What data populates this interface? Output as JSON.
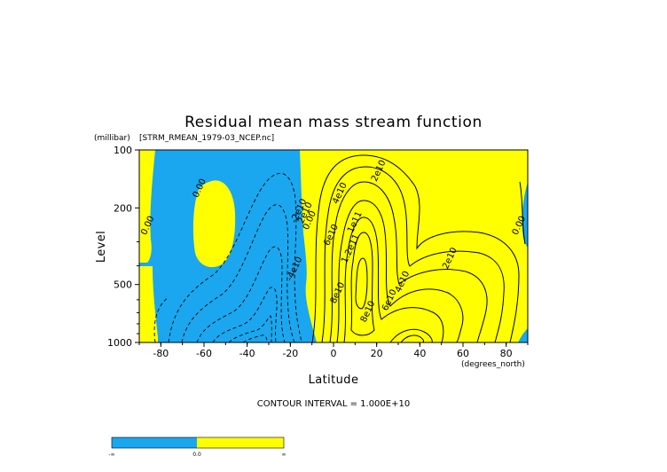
{
  "chart_data": {
    "type": "contour",
    "title": "Residual mean mass stream function",
    "source_file": "[STRM_RMEAN_1979-03_NCEP.nc]",
    "xlabel": "Latitude",
    "x_units": "(degrees_north)",
    "ylabel": "Level",
    "y_units": "(millibar)",
    "xlim": [
      -90,
      90
    ],
    "ylim": [
      1000,
      100
    ],
    "y_scale": "log",
    "x_ticks": [
      "-80",
      "-60",
      "-40",
      "-20",
      "0",
      "20",
      "40",
      "60",
      "80"
    ],
    "y_ticks": [
      "100",
      "200",
      "500",
      "1000"
    ],
    "x_tick_values": [
      -80,
      -60,
      -40,
      -20,
      0,
      20,
      40,
      60,
      80
    ],
    "y_tick_values": [
      100,
      200,
      500,
      1000
    ],
    "contour_interval_text": "CONTOUR INTERVAL = 1.000E+10",
    "contour_interval": 10000000000,
    "fill_colors": {
      "negative": "#1aa7ef",
      "positive": "#ffff00"
    },
    "colorbar_labels": [
      "-∞",
      "0.0",
      "∞"
    ],
    "contour_labels": [
      {
        "text": "0.00",
        "lat": -61,
        "p": 160
      },
      {
        "text": "0.00",
        "lat": -85,
        "p": 250
      },
      {
        "text": "0.00",
        "lat": 87,
        "p": 250
      },
      {
        "text": "-2e10",
        "lat": -15,
        "p": 210
      },
      {
        "text": "-4e10",
        "lat": -17,
        "p": 420
      },
      {
        "text": "2e10",
        "lat": -12,
        "p": 215
      },
      {
        "text": "0.00",
        "lat": -10,
        "p": 235
      },
      {
        "text": "2e10",
        "lat": 22,
        "p": 130
      },
      {
        "text": "4e10",
        "lat": 4,
        "p": 170
      },
      {
        "text": "1e11",
        "lat": 11,
        "p": 240
      },
      {
        "text": "6e10",
        "lat": 0,
        "p": 280
      },
      {
        "text": "1.2e11",
        "lat": 9,
        "p": 330
      },
      {
        "text": "8e10",
        "lat": 3,
        "p": 560
      },
      {
        "text": "2e10",
        "lat": 55,
        "p": 370
      },
      {
        "text": "4e10",
        "lat": 33,
        "p": 490
      },
      {
        "text": "6e10",
        "lat": 27,
        "p": 610
      },
      {
        "text": "8e10",
        "lat": 17,
        "p": 700
      }
    ]
  }
}
